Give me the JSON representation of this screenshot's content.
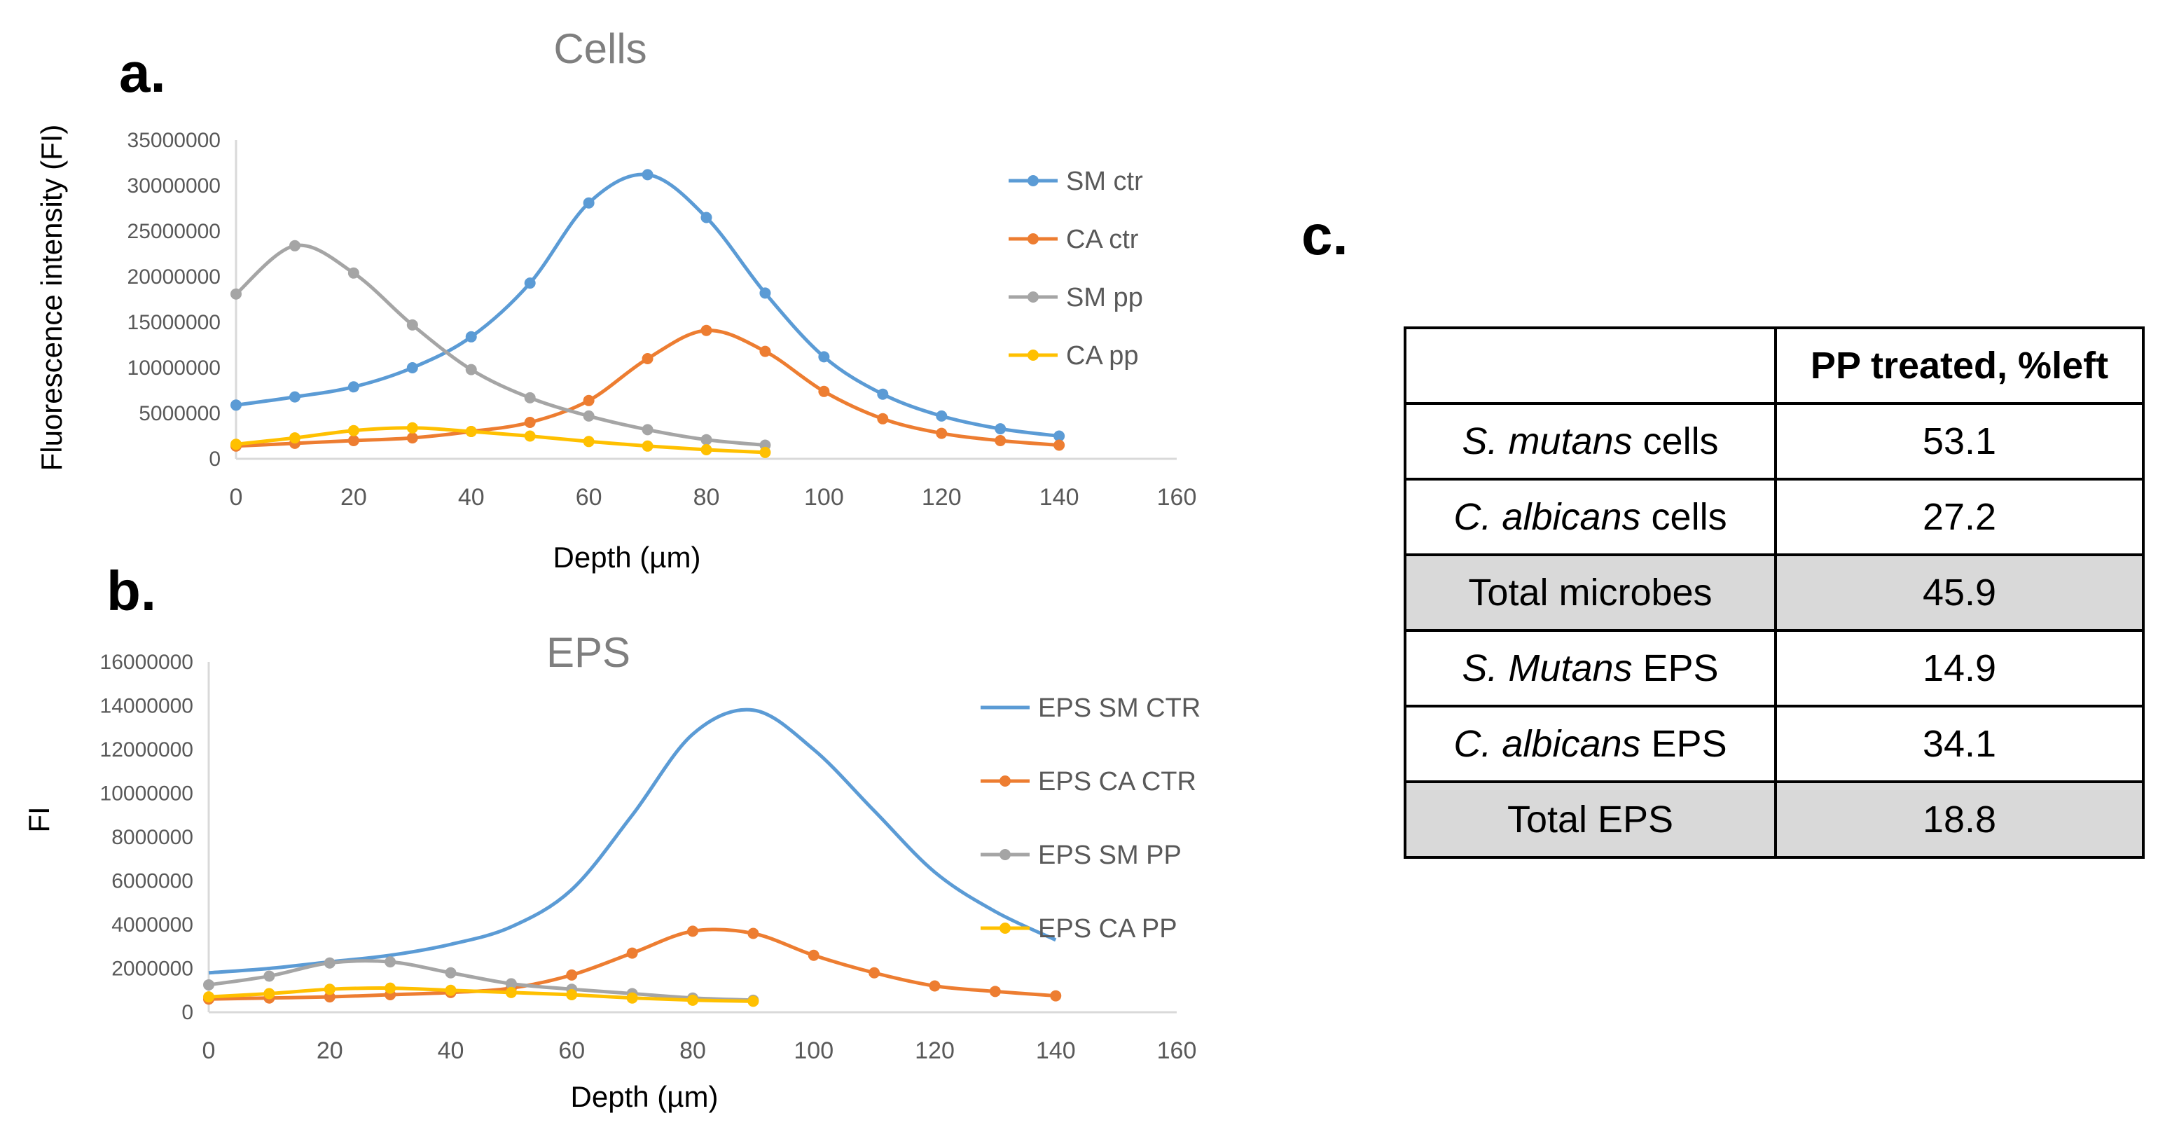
{
  "panels": {
    "a": "a.",
    "b": "b.",
    "c": "c."
  },
  "chart_data": [
    {
      "type": "line",
      "title": "Cells",
      "xlabel": "Depth (µm)",
      "ylabel": "Fluorescence intensity (FI)",
      "xlim": [
        0,
        160
      ],
      "ylim": [
        0,
        35000000
      ],
      "xticks": [
        0,
        20,
        40,
        60,
        80,
        100,
        120,
        140,
        160
      ],
      "yticks": [
        0,
        5000000,
        10000000,
        15000000,
        20000000,
        25000000,
        30000000,
        35000000
      ],
      "legend_position": "right",
      "series": [
        {
          "name": "SM ctr",
          "color": "#5b9bd5",
          "markers": true,
          "x": [
            0,
            10,
            20,
            30,
            40,
            50,
            60,
            70,
            80,
            90,
            100,
            110,
            120,
            130,
            140
          ],
          "values": [
            5900000,
            6800000,
            7900000,
            10000000,
            13400000,
            19300000,
            28100000,
            31200000,
            26500000,
            18200000,
            11200000,
            7100000,
            4700000,
            3300000,
            2500000
          ]
        },
        {
          "name": "CA ctr",
          "color": "#ed7d31",
          "markers": true,
          "x": [
            0,
            10,
            20,
            30,
            40,
            50,
            60,
            70,
            80,
            90,
            100,
            110,
            120,
            130,
            140
          ],
          "values": [
            1400000,
            1700000,
            2000000,
            2300000,
            3000000,
            4000000,
            6400000,
            11000000,
            14100000,
            11800000,
            7400000,
            4400000,
            2800000,
            2000000,
            1500000
          ]
        },
        {
          "name": "SM pp",
          "color": "#a5a5a5",
          "markers": true,
          "x": [
            0,
            10,
            20,
            30,
            40,
            50,
            60,
            70,
            80,
            90
          ],
          "values": [
            18100000,
            23400000,
            20400000,
            14700000,
            9800000,
            6700000,
            4700000,
            3200000,
            2100000,
            1500000
          ]
        },
        {
          "name": "CA pp",
          "color": "#ffc000",
          "markers": true,
          "x": [
            0,
            10,
            20,
            30,
            40,
            50,
            60,
            70,
            80,
            90
          ],
          "values": [
            1600000,
            2300000,
            3100000,
            3400000,
            3000000,
            2500000,
            1900000,
            1400000,
            1000000,
            700000
          ]
        }
      ]
    },
    {
      "type": "line",
      "title": "EPS",
      "xlabel": "Depth (µm)",
      "ylabel": "FI",
      "xlim": [
        0,
        160
      ],
      "ylim": [
        0,
        16000000
      ],
      "xticks": [
        0,
        20,
        40,
        60,
        80,
        100,
        120,
        140,
        160
      ],
      "yticks": [
        0,
        2000000,
        4000000,
        6000000,
        8000000,
        10000000,
        12000000,
        14000000,
        16000000
      ],
      "legend_position": "right",
      "series": [
        {
          "name": "EPS SM CTR",
          "color": "#5b9bd5",
          "markers": false,
          "x": [
            0,
            10,
            20,
            30,
            40,
            50,
            60,
            70,
            80,
            90,
            100,
            110,
            120,
            130,
            140
          ],
          "values": [
            1800000,
            2000000,
            2300000,
            2600000,
            3100000,
            3900000,
            5600000,
            9000000,
            12700000,
            13800000,
            12000000,
            9200000,
            6400000,
            4600000,
            3300000
          ]
        },
        {
          "name": "EPS CA CTR",
          "color": "#ed7d31",
          "markers": true,
          "x": [
            0,
            10,
            20,
            30,
            40,
            50,
            60,
            70,
            80,
            90,
            100,
            110,
            120,
            130,
            140
          ],
          "values": [
            600000,
            650000,
            700000,
            800000,
            900000,
            1100000,
            1700000,
            2700000,
            3700000,
            3600000,
            2600000,
            1800000,
            1200000,
            950000,
            750000
          ]
        },
        {
          "name": "EPS SM PP",
          "color": "#a5a5a5",
          "markers": true,
          "x": [
            0,
            10,
            20,
            30,
            40,
            50,
            60,
            70,
            80,
            90
          ],
          "values": [
            1250000,
            1650000,
            2250000,
            2300000,
            1800000,
            1300000,
            1050000,
            850000,
            650000,
            550000
          ]
        },
        {
          "name": "EPS CA PP",
          "color": "#ffc000",
          "markers": true,
          "x": [
            0,
            10,
            20,
            30,
            40,
            50,
            60,
            70,
            80,
            90
          ],
          "values": [
            700000,
            850000,
            1050000,
            1100000,
            1000000,
            900000,
            800000,
            650000,
            550000,
            500000
          ]
        }
      ]
    }
  ],
  "table": {
    "header": [
      "",
      "PP treated, %left"
    ],
    "rows": [
      {
        "label_italic": "S. mutans",
        "label_rest": " cells",
        "value": "53.1",
        "shaded": false
      },
      {
        "label_italic": "C. albicans",
        "label_rest": " cells",
        "value": "27.2",
        "shaded": false
      },
      {
        "label_italic": "",
        "label_rest": "Total microbes",
        "value": "45.9",
        "shaded": true
      },
      {
        "label_italic": "S. Mutans",
        "label_rest": " EPS",
        "value": "14.9",
        "shaded": false
      },
      {
        "label_italic": "C. albicans",
        "label_rest": " EPS",
        "value": "34.1",
        "shaded": false
      },
      {
        "label_italic": "",
        "label_rest": "Total EPS",
        "value": "18.8",
        "shaded": true
      }
    ]
  }
}
